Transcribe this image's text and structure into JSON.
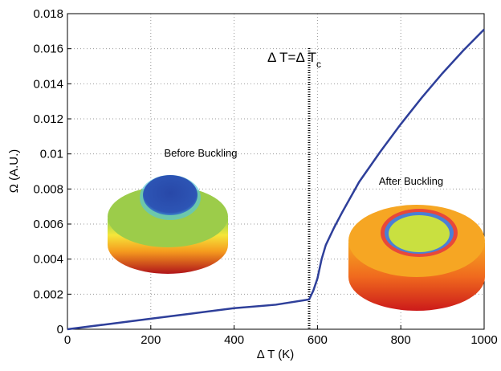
{
  "chart_data": {
    "type": "line",
    "xlabel": "Δ T (K)",
    "ylabel": "Ω (A.U.)",
    "x": [
      0,
      100,
      200,
      300,
      400,
      500,
      580,
      590,
      600,
      610,
      620,
      640,
      660,
      700,
      750,
      800,
      850,
      900,
      950,
      1000
    ],
    "values": [
      0,
      0.0003,
      0.0006,
      0.0009,
      0.0012,
      0.0014,
      0.0017,
      0.0022,
      0.0029,
      0.004,
      0.0048,
      0.0058,
      0.0067,
      0.0084,
      0.0101,
      0.0117,
      0.0132,
      0.0146,
      0.0159,
      0.0171
    ],
    "color": "#2e3f9a",
    "xlim": [
      0,
      1000
    ],
    "xticks": [
      0,
      200,
      400,
      600,
      800,
      1000
    ],
    "ylim": [
      0,
      0.018
    ],
    "yticks": [
      0,
      0.002,
      0.004,
      0.006,
      0.008,
      0.01,
      0.012,
      0.014,
      0.016,
      0.018
    ],
    "grid": true,
    "threshold_x": 580,
    "threshold_label": "Δ T=Δ T",
    "threshold_label_sub": "c",
    "inset_labels": [
      "Before Buckling",
      "After Buckling"
    ]
  }
}
